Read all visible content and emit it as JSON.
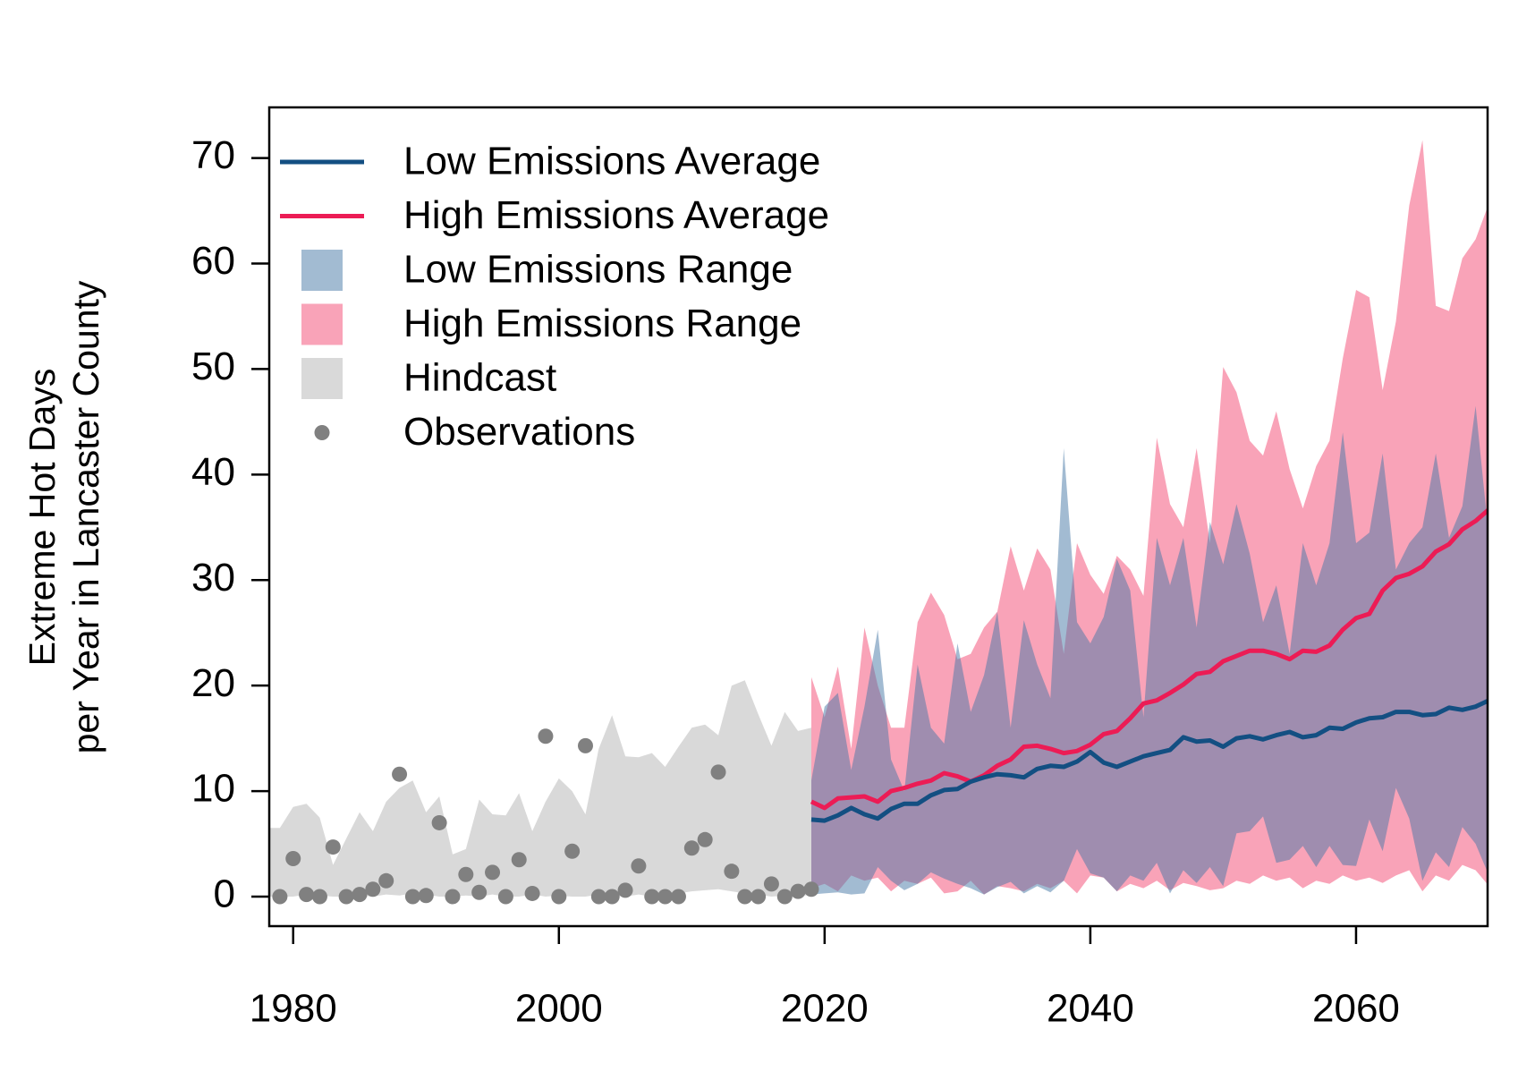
{
  "chart_data": {
    "type": "line",
    "ylabel": [
      "Extreme Hot Days",
      "per Year in Lancaster County"
    ],
    "xlim": [
      1978.2,
      2069.9
    ],
    "ylim": [
      -2.8,
      74.8
    ],
    "xticks": [
      1980,
      2000,
      2020,
      2040,
      2060
    ],
    "yticks": [
      0,
      10,
      20,
      30,
      40,
      50,
      60,
      70
    ],
    "legend": "topleft",
    "series": [
      {
        "name": "Low Emissions Average",
        "kind": "line",
        "color": "#134f82",
        "x": [
          2019,
          2020,
          2021,
          2022,
          2023,
          2024,
          2025,
          2026,
          2027,
          2028,
          2029,
          2030,
          2031,
          2032,
          2033,
          2034,
          2035,
          2036,
          2037,
          2038,
          2039,
          2040,
          2041,
          2042,
          2043,
          2044,
          2045,
          2046,
          2047,
          2048,
          2049,
          2050,
          2051,
          2052,
          2053,
          2054,
          2055,
          2056,
          2057,
          2058,
          2059,
          2060,
          2061,
          2062,
          2063,
          2064,
          2065,
          2066,
          2067,
          2068,
          2069,
          2070
        ],
        "values": [
          7.3,
          7.2,
          7.7,
          8.4,
          7.8,
          7.4,
          8.3,
          8.8,
          8.8,
          9.6,
          10.1,
          10.2,
          10.9,
          11.3,
          11.6,
          11.5,
          11.3,
          12.1,
          12.4,
          12.3,
          12.8,
          13.7,
          12.7,
          12.3,
          12.8,
          13.3,
          13.6,
          13.9,
          15.1,
          14.7,
          14.8,
          14.2,
          15.0,
          15.2,
          14.9,
          15.3,
          15.6,
          15.1,
          15.3,
          16.0,
          15.9,
          16.5,
          16.9,
          17.0,
          17.5,
          17.5,
          17.2,
          17.3,
          17.9,
          17.7,
          18.0,
          18.6
        ]
      },
      {
        "name": "High Emissions Average",
        "kind": "line",
        "color": "#ec1c55",
        "x": [
          2019,
          2020,
          2021,
          2022,
          2023,
          2024,
          2025,
          2026,
          2027,
          2028,
          2029,
          2030,
          2031,
          2032,
          2033,
          2034,
          2035,
          2036,
          2037,
          2038,
          2039,
          2040,
          2041,
          2042,
          2043,
          2044,
          2045,
          2046,
          2047,
          2048,
          2049,
          2050,
          2051,
          2052,
          2053,
          2054,
          2055,
          2056,
          2057,
          2058,
          2059,
          2060,
          2061,
          2062,
          2063,
          2064,
          2065,
          2066,
          2067,
          2068,
          2069,
          2070
        ],
        "values": [
          9.0,
          8.4,
          9.3,
          9.4,
          9.5,
          9.0,
          10.0,
          10.3,
          10.7,
          11.0,
          11.7,
          11.4,
          10.9,
          11.5,
          12.4,
          13.0,
          14.2,
          14.3,
          14.0,
          13.6,
          13.8,
          14.4,
          15.4,
          15.7,
          16.9,
          18.3,
          18.6,
          19.3,
          20.1,
          21.1,
          21.3,
          22.3,
          22.8,
          23.3,
          23.3,
          23.0,
          22.5,
          23.3,
          23.2,
          23.8,
          25.3,
          26.4,
          26.8,
          29.0,
          30.2,
          30.6,
          31.3,
          32.7,
          33.4,
          34.8,
          35.6,
          36.7
        ]
      },
      {
        "name": "Low Emissions Range",
        "kind": "band",
        "color": "rgba(69,119,165,0.5)",
        "x": [
          2019,
          2020,
          2021,
          2022,
          2023,
          2024,
          2025,
          2026,
          2027,
          2028,
          2029,
          2030,
          2031,
          2032,
          2033,
          2034,
          2035,
          2036,
          2037,
          2038,
          2039,
          2040,
          2041,
          2042,
          2043,
          2044,
          2045,
          2046,
          2047,
          2048,
          2049,
          2050,
          2051,
          2052,
          2053,
          2054,
          2055,
          2056,
          2057,
          2058,
          2059,
          2060,
          2061,
          2062,
          2063,
          2064,
          2065,
          2066,
          2067,
          2068,
          2069,
          2070
        ],
        "lower": [
          0.2,
          0.3,
          0.4,
          0.2,
          0.3,
          2.8,
          1.5,
          0.6,
          1.2,
          2.3,
          1.7,
          1.2,
          0.8,
          0.2,
          0.9,
          1.4,
          0.3,
          1.0,
          0.4,
          1.5,
          4.5,
          2.2,
          1.8,
          0.5,
          2.0,
          1.5,
          3.2,
          0.3,
          2.5,
          1.3,
          2.8,
          1.0,
          6.0,
          6.2,
          7.6,
          3.2,
          3.5,
          4.8,
          2.8,
          4.8,
          3.0,
          2.9,
          7.3,
          4.3,
          10.3,
          7.4,
          1.5,
          4.2,
          2.8,
          6.6,
          5.0,
          2.0
        ],
        "upper": [
          11,
          18,
          19.3,
          12,
          18,
          25.3,
          13,
          10,
          22,
          16,
          14.5,
          24,
          17.5,
          21,
          27,
          16,
          26.2,
          22,
          18.8,
          42.5,
          26,
          24,
          26.5,
          32,
          29,
          17,
          34,
          29.5,
          34,
          25.5,
          35.5,
          31.5,
          37.2,
          32.5,
          26,
          29.5,
          23,
          33.5,
          29.5,
          33.5,
          44,
          33.5,
          34.5,
          42,
          31,
          33.5,
          35,
          42,
          34,
          37,
          46.5,
          34
        ]
      },
      {
        "name": "High Emissions Range",
        "kind": "band",
        "color": "#f9a3b8",
        "x": [
          2019,
          2020,
          2021,
          2022,
          2023,
          2024,
          2025,
          2026,
          2027,
          2028,
          2029,
          2030,
          2031,
          2032,
          2033,
          2034,
          2035,
          2036,
          2037,
          2038,
          2039,
          2040,
          2041,
          2042,
          2043,
          2044,
          2045,
          2046,
          2047,
          2048,
          2049,
          2050,
          2051,
          2052,
          2053,
          2054,
          2055,
          2056,
          2057,
          2058,
          2059,
          2060,
          2061,
          2062,
          2063,
          2064,
          2065,
          2066,
          2067,
          2068,
          2069,
          2070
        ],
        "lower": [
          0.8,
          1.2,
          0.5,
          2,
          1.5,
          1.8,
          0.5,
          1.5,
          1.2,
          1.8,
          0.3,
          0.5,
          1.5,
          0.2,
          1.0,
          0.8,
          0.5,
          1.2,
          0.8,
          1.5,
          0.3,
          2.0,
          1.8,
          0.5,
          1.2,
          0.8,
          1.5,
          0.6,
          1.3,
          1.0,
          0.6,
          0.8,
          1.5,
          1.2,
          2.0,
          1.5,
          1.8,
          0.8,
          1.5,
          1.2,
          2.0,
          1.5,
          1.8,
          1.3,
          2.0,
          2.5,
          0.5,
          2.0,
          1.5,
          3.0,
          2.5,
          1.0
        ],
        "upper": [
          20.8,
          17,
          21.8,
          14,
          25.5,
          20,
          16,
          16,
          26,
          28.8,
          26.7,
          22.5,
          23,
          25.5,
          27,
          33.2,
          29,
          33,
          31,
          23,
          33.5,
          30.5,
          28.7,
          32.3,
          31,
          28.5,
          43.5,
          37.2,
          35,
          42.5,
          33.5,
          50.2,
          47.8,
          43.2,
          41.8,
          46,
          40.5,
          36.8,
          40.8,
          43.2,
          51,
          57.5,
          56.8,
          48,
          54.5,
          65.5,
          71.7,
          56,
          55.5,
          60.5,
          62.3,
          65.7
        ]
      },
      {
        "name": "Hindcast",
        "kind": "band",
        "color": "#d9d9d9",
        "x": [
          1978,
          1979,
          1980,
          1981,
          1982,
          1983,
          1984,
          1985,
          1986,
          1987,
          1988,
          1989,
          1990,
          1991,
          1992,
          1993,
          1994,
          1995,
          1996,
          1997,
          1998,
          1999,
          2000,
          2001,
          2002,
          2003,
          2004,
          2005,
          2006,
          2007,
          2008,
          2009,
          2010,
          2011,
          2012,
          2013,
          2014,
          2015,
          2016,
          2017,
          2018,
          2019
        ],
        "lower": [
          0,
          0,
          0,
          0.2,
          0.1,
          0,
          0,
          0.1,
          0,
          0.2,
          0.1,
          0.3,
          0.2,
          0,
          0,
          0.1,
          0,
          0.2,
          0,
          0,
          0.2,
          0,
          0.1,
          0,
          0,
          0.2,
          0.1,
          0,
          0.2,
          0,
          0,
          0.3,
          0.5,
          0.6,
          0.7,
          0.5,
          0.3,
          0.2,
          0,
          0.1,
          0,
          0.2
        ],
        "upper": [
          6.5,
          6.5,
          8.5,
          8.8,
          7.5,
          3,
          5.5,
          8,
          6.2,
          9,
          10.3,
          11,
          8,
          9.5,
          4,
          4.5,
          9.2,
          7.8,
          7.7,
          9.8,
          6.2,
          9,
          11.2,
          10,
          7.8,
          14,
          17.2,
          13.3,
          13.2,
          13.6,
          12.3,
          14.2,
          16,
          16.3,
          15.3,
          20,
          20.5,
          17.3,
          14.3,
          17.5,
          15.7,
          16
        ]
      },
      {
        "name": "Observations",
        "kind": "points",
        "color": "#808080",
        "x": [
          1979,
          1980,
          1981,
          1982,
          1983,
          1984,
          1985,
          1986,
          1987,
          1988,
          1989,
          1990,
          1991,
          1992,
          1993,
          1994,
          1995,
          1996,
          1997,
          1998,
          1999,
          2000,
          2001,
          2002,
          2003,
          2004,
          2005,
          2006,
          2007,
          2008,
          2009,
          2010,
          2011,
          2012,
          2013,
          2014,
          2015,
          2016,
          2017,
          2018,
          2019
        ],
        "values": [
          0,
          3.6,
          0.2,
          0,
          4.7,
          0,
          0.2,
          0.7,
          1.5,
          11.6,
          0,
          0.1,
          7,
          0,
          2.1,
          0.4,
          2.3,
          0,
          3.5,
          0.3,
          15.2,
          0,
          4.3,
          14.3,
          0,
          0,
          0.6,
          2.9,
          0,
          0,
          0,
          4.6,
          5.4,
          11.8,
          2.4,
          0,
          0,
          1.2,
          0,
          0.5,
          0.7
        ]
      }
    ]
  }
}
